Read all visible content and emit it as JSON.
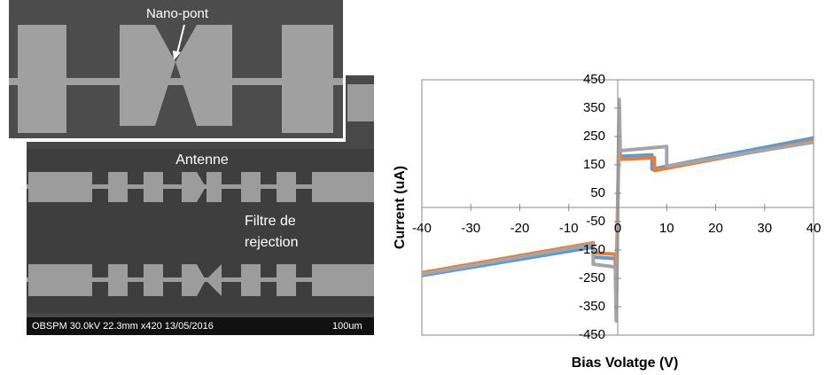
{
  "image": {
    "annotations": [
      "Nano-pont",
      "Antenne",
      "Filtre de",
      "rejection"
    ],
    "footer": "OBSPM 30.0kV 22.3mm x420  13/05/2016",
    "scale_label": "100um"
  },
  "chart_data": {
    "type": "line",
    "xlabel": "Bias Volatge (V)",
    "ylabel": "Current (uA)",
    "xlim": [
      -40,
      40
    ],
    "xticks": [
      -40,
      -30,
      -20,
      -10,
      0,
      10,
      20,
      30,
      40
    ],
    "ylim": [
      -450,
      450
    ],
    "yticks": [
      -450,
      -350,
      -250,
      -150,
      -50,
      50,
      150,
      250,
      350,
      450
    ],
    "grid": false,
    "series": [
      {
        "color": "#5b9bd5",
        "x": [
          -40,
          -5,
          -5,
          -0.5,
          -0.3,
          0.3,
          0.5,
          7,
          7,
          40
        ],
        "values": [
          -240,
          -140,
          -175,
          -180,
          -330,
          330,
          180,
          185,
          135,
          245
        ]
      },
      {
        "color": "#ed7d31",
        "x": [
          -40,
          -5,
          -5,
          -0.5,
          -0.3,
          0.3,
          0.5,
          7.5,
          7.5,
          40
        ],
        "values": [
          -230,
          -125,
          -160,
          -165,
          -270,
          280,
          170,
          175,
          130,
          235
        ]
      },
      {
        "color": "#a5a5a5",
        "x": [
          -40,
          -5,
          -5,
          -0.5,
          -0.3,
          0.3,
          0.5,
          10,
          10,
          40
        ],
        "values": [
          -235,
          -130,
          -200,
          -210,
          -400,
          380,
          200,
          215,
          145,
          230
        ]
      }
    ]
  }
}
